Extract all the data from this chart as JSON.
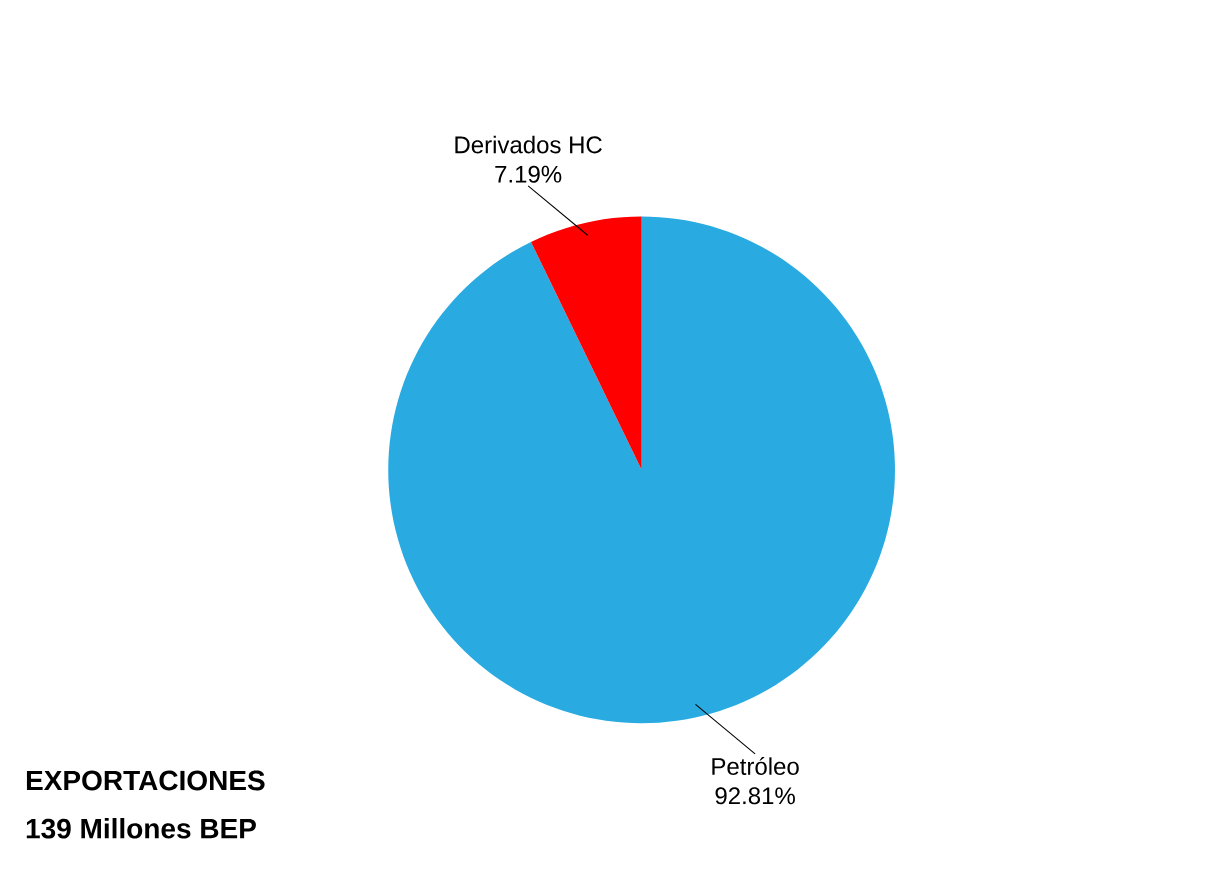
{
  "chart_data": {
    "type": "pie",
    "title": "EXPORTACIONES",
    "subtitle": "139 Millones BEP",
    "categories": [
      "Petróleo",
      "Derivados HC"
    ],
    "values": [
      92.81,
      7.19
    ],
    "colors": [
      "#29abe2",
      "#ff0000"
    ],
    "value_labels": [
      "92.81%",
      "7.19%"
    ]
  }
}
